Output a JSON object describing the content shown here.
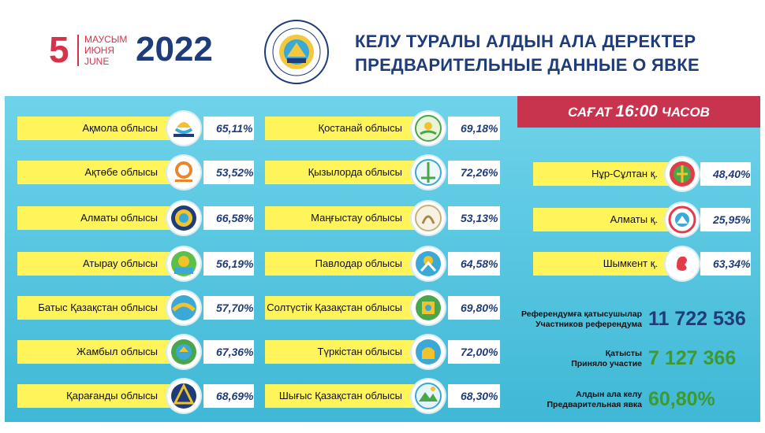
{
  "date": {
    "day": "5",
    "month_kz": "МАУСЫМ",
    "month_ru": "ИЮНЯ",
    "month_en": "JUNE",
    "year": "2022"
  },
  "title": {
    "kz": "КЕЛУ ТУРАЛЫ АЛДЫН АЛА ДЕРЕКТЕР",
    "ru": "ПРЕДВАРИТЕЛЬНЫЕ ДАННЫЕ О ЯВКЕ"
  },
  "time": {
    "prefix": "САҒАТ",
    "value": "16:00",
    "suffix": "ЧАСОВ"
  },
  "column1": [
    {
      "name": "Ақмола облысы",
      "pct": "65,11%",
      "logo": "aqmola-logo"
    },
    {
      "name": "Ақтөбе облысы",
      "pct": "53,52%",
      "logo": "aktobe-logo"
    },
    {
      "name": "Алматы облысы",
      "pct": "66,58%",
      "logo": "almaty-region-logo"
    },
    {
      "name": "Атырау облысы",
      "pct": "56,19%",
      "logo": "atyrau-logo"
    },
    {
      "name": "Батыс Қазақстан облысы",
      "pct": "57,70%",
      "logo": "west-kaz-logo"
    },
    {
      "name": "Жамбыл облысы",
      "pct": "67,36%",
      "logo": "zhambyl-logo"
    },
    {
      "name": "Қарағанды облысы",
      "pct": "68,69%",
      "logo": "karaganda-logo"
    }
  ],
  "column2": [
    {
      "name": "Қостанай облысы",
      "pct": "69,18%",
      "logo": "kostanay-logo"
    },
    {
      "name": "Қызылорда облысы",
      "pct": "72,26%",
      "logo": "kyzylorda-logo"
    },
    {
      "name": "Маңғыстау облысы",
      "pct": "53,13%",
      "logo": "mangystau-logo"
    },
    {
      "name": "Павлодар облысы",
      "pct": "64,58%",
      "logo": "pavlodar-logo"
    },
    {
      "name": "Солтүстік Қазақстан облысы",
      "pct": "69,80%",
      "logo": "north-kaz-logo"
    },
    {
      "name": "Түркістан облысы",
      "pct": "72,00%",
      "logo": "turkistan-logo"
    },
    {
      "name": "Шығыс Қазақстан облысы",
      "pct": "68,30%",
      "logo": "east-kaz-logo"
    }
  ],
  "cities": [
    {
      "name": "Нұр-Сұлтан қ.",
      "pct": "48,40%",
      "logo": "nur-sultan-logo"
    },
    {
      "name": "Алматы қ.",
      "pct": "25,95%",
      "logo": "almaty-city-logo"
    },
    {
      "name": "Шымкент қ.",
      "pct": "63,34%",
      "logo": "shymkent-logo"
    }
  ],
  "stats": {
    "participants": {
      "label_kz": "Референдумға қатысушылар",
      "label_ru": "Участников референдума",
      "value": "11 722 536",
      "color": "#1f3c7a"
    },
    "turnout": {
      "label_kz": "Қатысты",
      "label_ru": "Приняло участие",
      "value": "7 127 366",
      "color": "#3e9a2f"
    },
    "percent": {
      "label_kz": "Алдын ала келу",
      "label_ru": "Предварительная явка",
      "value": "60,80%",
      "color": "#3e9a2f"
    }
  },
  "colors": {
    "accent_red": "#d6334a",
    "navy": "#1f3c7a",
    "label_yellow": "#fff45a",
    "panel": "#4fc4e0"
  }
}
